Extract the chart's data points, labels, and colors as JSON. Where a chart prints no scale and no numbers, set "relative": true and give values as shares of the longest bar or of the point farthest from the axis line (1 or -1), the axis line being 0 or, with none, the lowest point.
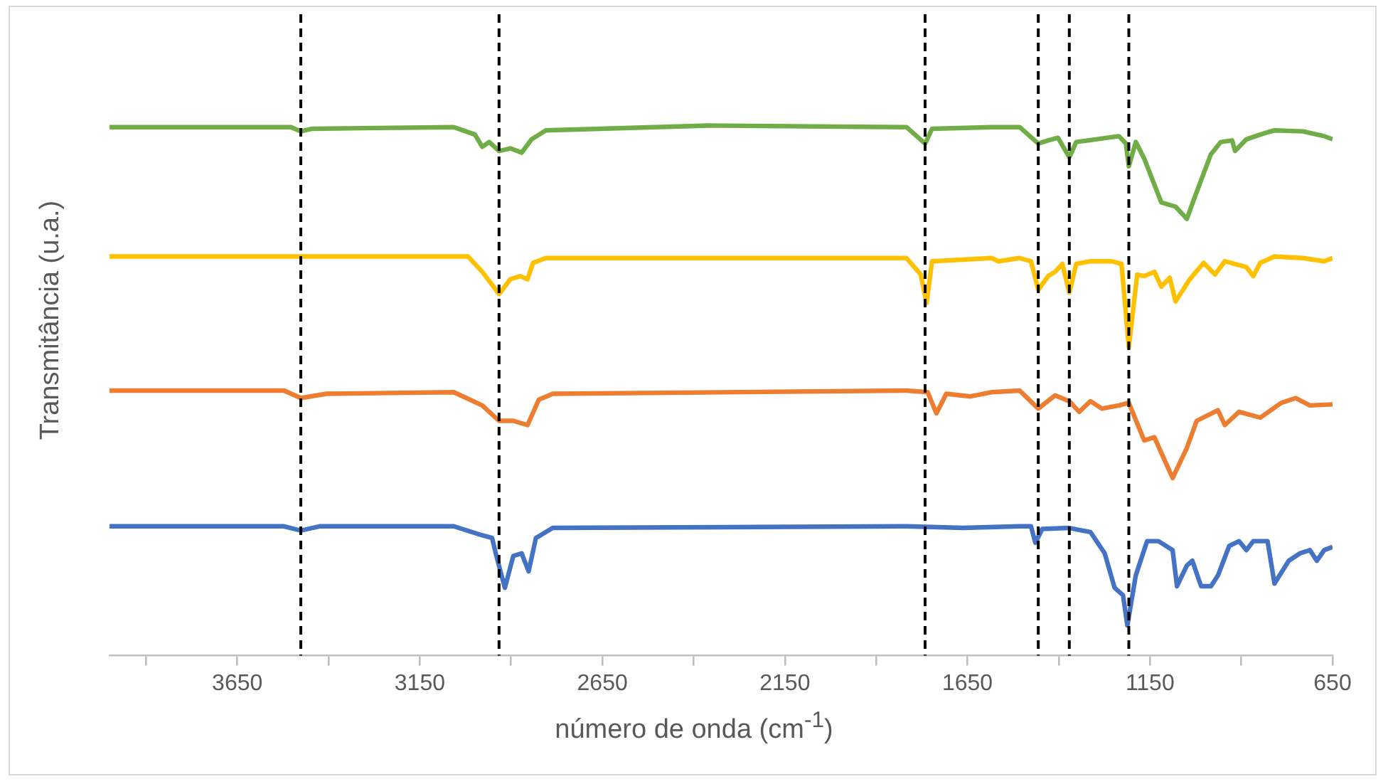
{
  "chart_data": {
    "type": "line",
    "relative": true,
    "xlabel": "número de onda (cm$^{-1}$)",
    "ylabel": "Transmitância (u.a.)",
    "xlim": [
      4000,
      650
    ],
    "xticks": [
      {
        "value": 3900,
        "label": null
      },
      3650,
      {
        "value": 3400,
        "label": null
      },
      3150,
      {
        "value": 2900,
        "label": null
      },
      2650,
      {
        "value": 2400,
        "label": null
      },
      2150,
      {
        "value": 1900,
        "label": null
      },
      1650,
      {
        "value": 1400,
        "label": null
      },
      1150,
      {
        "value": 900,
        "label": null
      },
      650
    ],
    "grid": false,
    "legend": false,
    "marker": "none",
    "line_style": "solid",
    "ref_lines": [
      {
        "axis": "x",
        "value": 3476,
        "color": "#000000",
        "line_style": "dashed"
      },
      {
        "axis": "x",
        "value": 2933,
        "color": "#000000",
        "line_style": "dashed"
      },
      {
        "axis": "x",
        "value": 1766,
        "color": "#000000",
        "line_style": "dashed"
      },
      {
        "axis": "x",
        "value": 1456,
        "color": "#000000",
        "line_style": "dashed"
      },
      {
        "axis": "x",
        "value": 1371,
        "color": "#000000",
        "line_style": "dashed"
      },
      {
        "axis": "x",
        "value": 1208,
        "color": "#000000",
        "line_style": "dashed"
      }
    ],
    "series": [
      {
        "color": "#70ad47",
        "x": [
          4000,
          3503,
          3476,
          3445,
          3057,
          2999,
          2979,
          2960,
          2933,
          2902,
          2871,
          2844,
          2805,
          2359,
          1817,
          1766,
          1747,
          1584,
          1507,
          1456,
          1429,
          1402,
          1371,
          1352,
          1235,
          1216,
          1208,
          1189,
          1166,
          1119,
          1080,
          1049,
          1022,
          983,
          956,
          925,
          917,
          886,
          848,
          809,
          731,
          673,
          650
        ],
        "values": [
          0.997,
          0.997,
          0.989,
          0.994,
          0.997,
          0.983,
          0.96,
          0.969,
          0.952,
          0.957,
          0.949,
          0.974,
          0.991,
          1.0,
          0.997,
          0.966,
          0.994,
          0.997,
          0.997,
          0.966,
          0.972,
          0.977,
          0.94,
          0.969,
          0.98,
          0.966,
          0.923,
          0.969,
          0.938,
          0.855,
          0.847,
          0.824,
          0.875,
          0.946,
          0.969,
          0.972,
          0.952,
          0.974,
          0.983,
          0.991,
          0.989,
          0.98,
          0.974
        ]
      },
      {
        "color": "#ffc000",
        "x": [
          4000,
          3018,
          2979,
          2948,
          2933,
          2902,
          2875,
          2855,
          2840,
          2805,
          1817,
          1778,
          1762,
          1747,
          1584,
          1565,
          1507,
          1476,
          1456,
          1429,
          1410,
          1390,
          1371,
          1352,
          1313,
          1255,
          1228,
          1208,
          1185,
          1166,
          1138,
          1119,
          1096,
          1080,
          1041,
          1003,
          972,
          945,
          886,
          867,
          848,
          809,
          731,
          673,
          650
        ],
        "values": [
          0.753,
          0.753,
          0.724,
          0.696,
          0.682,
          0.71,
          0.716,
          0.71,
          0.741,
          0.75,
          0.75,
          0.719,
          0.665,
          0.744,
          0.75,
          0.744,
          0.75,
          0.744,
          0.69,
          0.716,
          0.724,
          0.739,
          0.685,
          0.739,
          0.744,
          0.744,
          0.739,
          0.582,
          0.719,
          0.716,
          0.724,
          0.696,
          0.713,
          0.668,
          0.71,
          0.741,
          0.719,
          0.744,
          0.733,
          0.716,
          0.741,
          0.753,
          0.75,
          0.744,
          0.75
        ]
      },
      {
        "color": "#ed7d31",
        "x": [
          4000,
          3522,
          3476,
          3406,
          3057,
          2979,
          2933,
          2894,
          2855,
          2824,
          2786,
          1817,
          1759,
          1735,
          1708,
          1642,
          1584,
          1507,
          1456,
          1410,
          1371,
          1344,
          1313,
          1282,
          1235,
          1208,
          1166,
          1138,
          1088,
          1049,
          1022,
          964,
          945,
          906,
          848,
          790,
          751,
          712,
          650
        ],
        "values": [
          0.5,
          0.5,
          0.486,
          0.494,
          0.497,
          0.472,
          0.443,
          0.443,
          0.435,
          0.483,
          0.494,
          0.5,
          0.497,
          0.457,
          0.494,
          0.489,
          0.497,
          0.5,
          0.466,
          0.491,
          0.48,
          0.46,
          0.48,
          0.466,
          0.472,
          0.477,
          0.406,
          0.412,
          0.335,
          0.392,
          0.443,
          0.463,
          0.435,
          0.46,
          0.449,
          0.477,
          0.486,
          0.472,
          0.474
        ]
      },
      {
        "color": "#4472c4",
        "x": [
          4000,
          3522,
          3476,
          3425,
          3057,
          2979,
          2952,
          2941,
          2917,
          2894,
          2871,
          2852,
          2832,
          2786,
          1817,
          1662,
          1507,
          1476,
          1464,
          1445,
          1371,
          1313,
          1274,
          1247,
          1224,
          1212,
          1189,
          1158,
          1127,
          1088,
          1076,
          1049,
          1034,
          1010,
          983,
          964,
          933,
          906,
          886,
          867,
          828,
          809,
          770,
          739,
          712,
          693,
          673,
          650
        ],
        "values": [
          0.244,
          0.244,
          0.236,
          0.244,
          0.244,
          0.227,
          0.222,
          0.19,
          0.128,
          0.188,
          0.193,
          0.159,
          0.222,
          0.241,
          0.244,
          0.241,
          0.244,
          0.244,
          0.213,
          0.239,
          0.241,
          0.233,
          0.193,
          0.128,
          0.114,
          0.057,
          0.151,
          0.216,
          0.216,
          0.199,
          0.131,
          0.17,
          0.179,
          0.131,
          0.131,
          0.151,
          0.207,
          0.216,
          0.199,
          0.216,
          0.216,
          0.136,
          0.179,
          0.193,
          0.199,
          0.179,
          0.199,
          0.205
        ]
      }
    ]
  }
}
